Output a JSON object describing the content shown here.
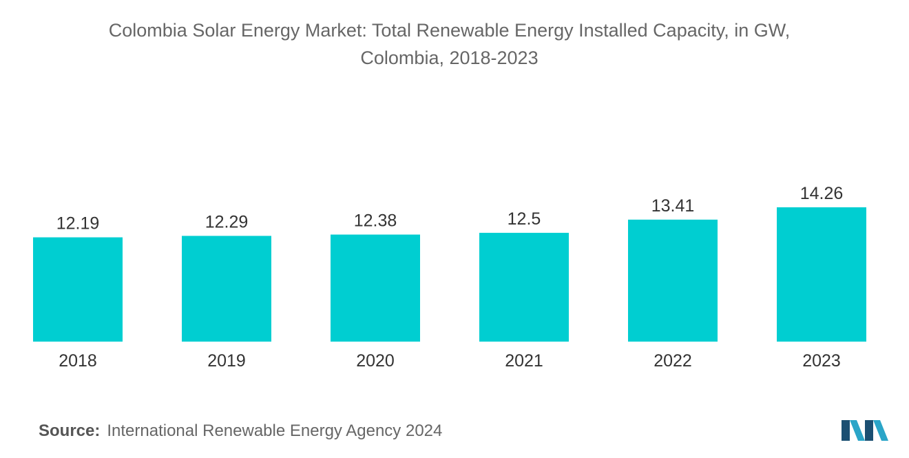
{
  "chart_data": {
    "type": "bar",
    "title_lines": [
      "Colombia Solar Energy Market: Total Renewable Energy Installed Capacity, in GW,",
      "Colombia, 2018-2023"
    ],
    "categories": [
      "2018",
      "2019",
      "2020",
      "2021",
      "2022",
      "2023"
    ],
    "values": [
      12.19,
      12.29,
      12.38,
      12.5,
      13.41,
      14.26
    ],
    "value_labels": [
      "12.19",
      "12.29",
      "12.38",
      "12.5",
      "13.41",
      "14.26"
    ],
    "xlabel": "",
    "ylabel": "",
    "ylim": [
      5.0,
      14.26
    ],
    "grid": false,
    "bar_color": "#00CED1"
  },
  "source": {
    "label": "Source:",
    "text": "International Renewable Energy Agency 2024"
  },
  "logo": {
    "icon": "mordor-intelligence-logo",
    "colors": [
      "#1b4f72",
      "#2aa5c8"
    ]
  }
}
